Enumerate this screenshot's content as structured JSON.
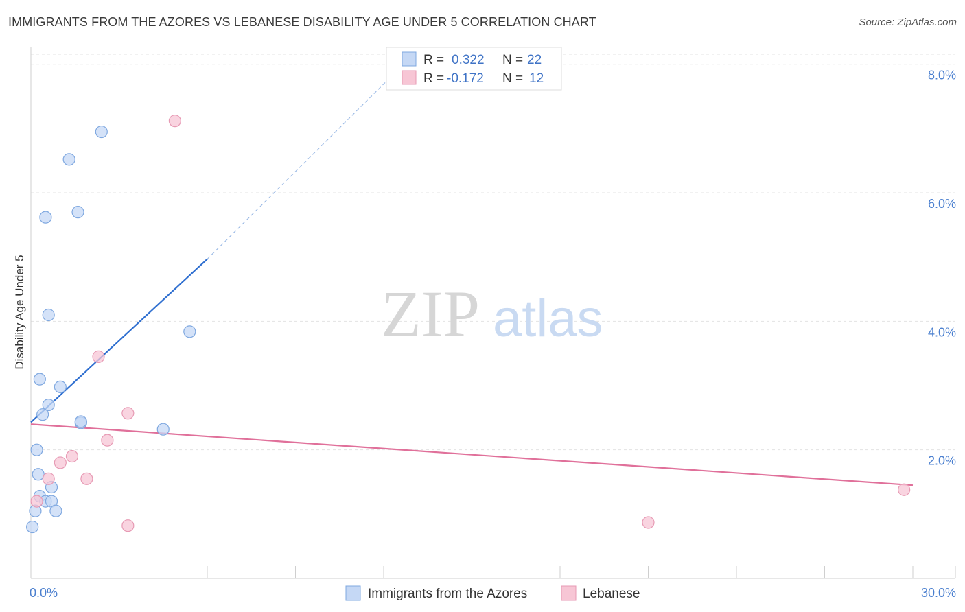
{
  "title": "IMMIGRANTS FROM THE AZORES VS LEBANESE DISABILITY AGE UNDER 5 CORRELATION CHART",
  "source": "Source: ZipAtlas.com",
  "watermark": {
    "zip": "ZIP",
    "atlas": "atlas"
  },
  "colors": {
    "blue_fill": "#c5d8f5",
    "blue_stroke": "#7fa8e0",
    "blue_line": "#2f6fd0",
    "pink_fill": "#f7c6d5",
    "pink_stroke": "#e79ab4",
    "pink_line": "#e0709a",
    "grid": "#e3e3e3",
    "tick_text": "#4a7fcf"
  },
  "chart_data": {
    "type": "scatter",
    "title": "IMMIGRANTS FROM THE AZORES VS LEBANESE DISABILITY AGE UNDER 5 CORRELATION CHART",
    "xlabel": "",
    "ylabel": "Disability Age Under 5",
    "xlim": [
      0,
      30
    ],
    "ylim": [
      0,
      8.2
    ],
    "x_tick_labels": [
      "0.0%",
      "30.0%"
    ],
    "y_ticks": [
      2,
      4,
      6,
      8
    ],
    "y_tick_labels": [
      "2.0%",
      "4.0%",
      "6.0%",
      "8.0%"
    ],
    "grid": true,
    "legend_top": [
      {
        "r_label": "R = ",
        "r_value": "0.322",
        "n_label": "N = ",
        "n_value": "22"
      },
      {
        "r_label": "R = ",
        "r_value": "-0.172",
        "n_label": "N = ",
        "n_value": "12"
      }
    ],
    "series": [
      {
        "name": "Immigrants from the Azores",
        "color": "#7fa8e0",
        "points": [
          [
            2.4,
            6.95
          ],
          [
            1.3,
            6.52
          ],
          [
            0.5,
            5.62
          ],
          [
            1.6,
            5.7
          ],
          [
            0.6,
            4.1
          ],
          [
            5.4,
            3.84
          ],
          [
            0.3,
            3.1
          ],
          [
            1.0,
            2.98
          ],
          [
            0.6,
            2.7
          ],
          [
            0.4,
            2.55
          ],
          [
            1.7,
            2.42
          ],
          [
            1.7,
            2.44
          ],
          [
            4.5,
            2.32
          ],
          [
            0.2,
            2.0
          ],
          [
            0.25,
            1.62
          ],
          [
            0.7,
            1.42
          ],
          [
            0.3,
            1.28
          ],
          [
            0.5,
            1.2
          ],
          [
            0.7,
            1.2
          ],
          [
            0.15,
            1.05
          ],
          [
            0.85,
            1.05
          ],
          [
            0.05,
            0.8
          ]
        ],
        "trend": {
          "x0": 0,
          "y0": 2.43,
          "x1": 6.0,
          "y1": 4.97,
          "dash_x1": 12.5,
          "dash_y1": 7.92
        }
      },
      {
        "name": "Lebanese",
        "color": "#e79ab4",
        "points": [
          [
            4.9,
            7.12
          ],
          [
            2.3,
            3.45
          ],
          [
            3.3,
            2.57
          ],
          [
            2.6,
            2.15
          ],
          [
            1.4,
            1.9
          ],
          [
            1.0,
            1.8
          ],
          [
            0.6,
            1.55
          ],
          [
            1.9,
            1.55
          ],
          [
            0.2,
            1.2
          ],
          [
            3.3,
            0.82
          ],
          [
            21.0,
            0.87
          ],
          [
            29.7,
            1.38
          ]
        ],
        "trend": {
          "x0": 0,
          "y0": 2.4,
          "x1": 30,
          "y1": 1.45
        }
      }
    ]
  }
}
